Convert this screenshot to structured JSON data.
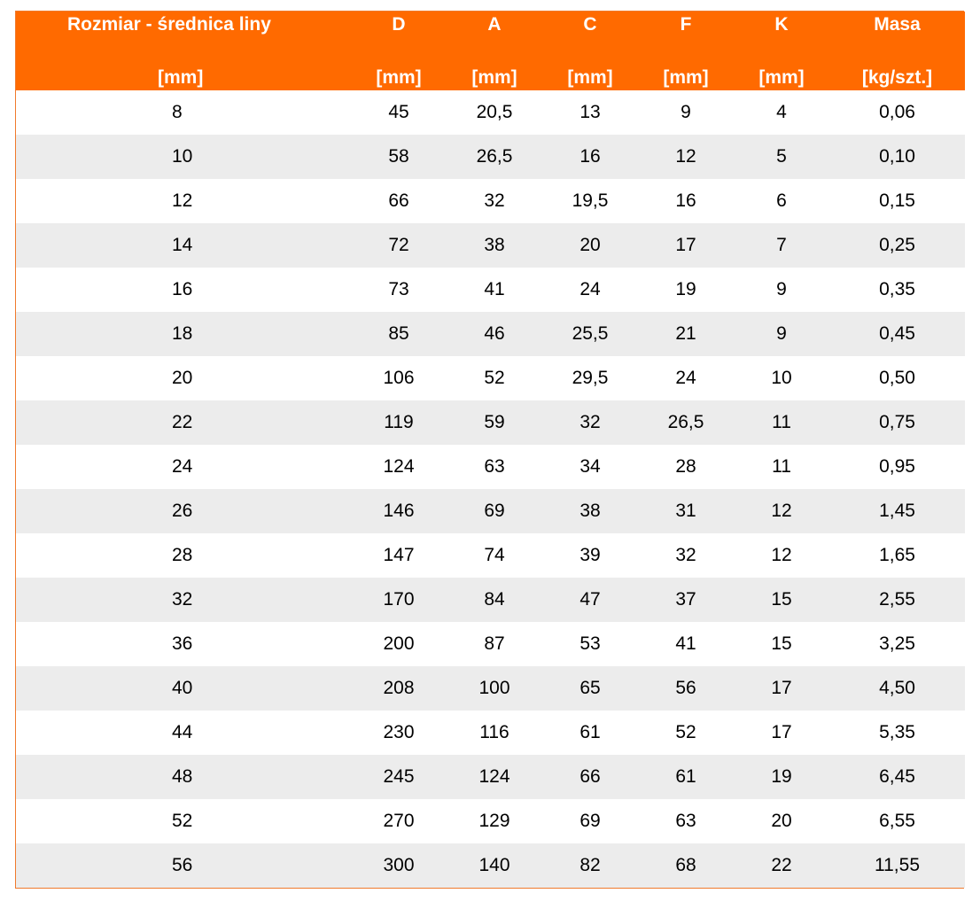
{
  "table": {
    "headers": [
      {
        "label": "Rozmiar - średnica liny",
        "unit": "[mm]"
      },
      {
        "label": "D",
        "unit": "[mm]"
      },
      {
        "label": "A",
        "unit": "[mm]"
      },
      {
        "label": "C",
        "unit": "[mm]"
      },
      {
        "label": "F",
        "unit": "[mm]"
      },
      {
        "label": "K",
        "unit": "[mm]"
      },
      {
        "label": "Masa",
        "unit": "[kg/szt.]"
      }
    ],
    "rows": [
      [
        "8",
        "45",
        "20,5",
        "13",
        "9",
        "4",
        "0,06"
      ],
      [
        "10",
        "58",
        "26,5",
        "16",
        "12",
        "5",
        "0,10"
      ],
      [
        "12",
        "66",
        "32",
        "19,5",
        "16",
        "6",
        "0,15"
      ],
      [
        "14",
        "72",
        "38",
        "20",
        "17",
        "7",
        "0,25"
      ],
      [
        "16",
        "73",
        "41",
        "24",
        "19",
        "9",
        "0,35"
      ],
      [
        "18",
        "85",
        "46",
        "25,5",
        "21",
        "9",
        "0,45"
      ],
      [
        "20",
        "106",
        "52",
        "29,5",
        "24",
        "10",
        "0,50"
      ],
      [
        "22",
        "119",
        "59",
        "32",
        "26,5",
        "11",
        "0,75"
      ],
      [
        "24",
        "124",
        "63",
        "34",
        "28",
        "11",
        "0,95"
      ],
      [
        "26",
        "146",
        "69",
        "38",
        "31",
        "12",
        "1,45"
      ],
      [
        "28",
        "147",
        "74",
        "39",
        "32",
        "12",
        "1,65"
      ],
      [
        "32",
        "170",
        "84",
        "47",
        "37",
        "15",
        "2,55"
      ],
      [
        "36",
        "200",
        "87",
        "53",
        "41",
        "15",
        "3,25"
      ],
      [
        "40",
        "208",
        "100",
        "65",
        "56",
        "17",
        "4,50"
      ],
      [
        "44",
        "230",
        "116",
        "61",
        "52",
        "17",
        "5,35"
      ],
      [
        "48",
        "245",
        "124",
        "66",
        "61",
        "19",
        "6,45"
      ],
      [
        "52",
        "270",
        "129",
        "69",
        "63",
        "20",
        "6,55"
      ],
      [
        "56",
        "300",
        "140",
        "82",
        "68",
        "22",
        "11,55"
      ]
    ]
  },
  "colors": {
    "header_bg": "#ff6a00",
    "header_text": "#ffffff",
    "stripe_bg": "#ececec",
    "border": "#f07a2c"
  }
}
